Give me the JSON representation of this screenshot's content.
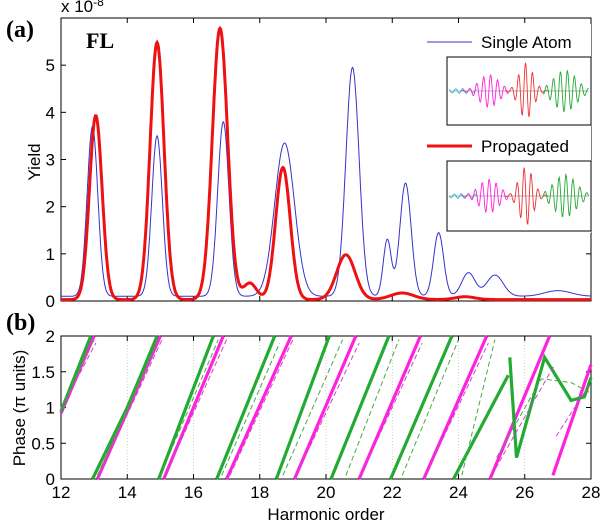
{
  "chart_data": [
    {
      "type": "line",
      "panel_label": "(a)",
      "annotation": "FL",
      "ylabel": "Yield",
      "scale_label_base": "x 10",
      "scale_label_exp": "-8",
      "xlim": [
        12,
        28
      ],
      "ylim": [
        0,
        6
      ],
      "xticks": [
        12,
        14,
        16,
        18,
        20,
        22,
        24,
        26,
        28
      ],
      "yticks": [
        "0",
        "1",
        "2",
        "3",
        "4",
        "5"
      ],
      "ytick_values": [
        0,
        1,
        2,
        3,
        4,
        5
      ],
      "series": [
        {
          "name": "Single Atom",
          "color": "#3333cc",
          "peaks": [
            {
              "x": 12.95,
              "y": 3.6,
              "w": 0.16
            },
            {
              "x": 14.9,
              "y": 3.4,
              "w": 0.16
            },
            {
              "x": 16.9,
              "y": 3.7,
              "w": 0.17
            },
            {
              "x": 18.75,
              "y": 3.25,
              "w": 0.3
            },
            {
              "x": 20.8,
              "y": 4.85,
              "w": 0.2
            },
            {
              "x": 21.85,
              "y": 1.2,
              "w": 0.12
            },
            {
              "x": 22.4,
              "y": 2.4,
              "w": 0.17
            },
            {
              "x": 23.4,
              "y": 1.35,
              "w": 0.15
            },
            {
              "x": 24.3,
              "y": 0.5,
              "w": 0.2
            },
            {
              "x": 25.1,
              "y": 0.45,
              "w": 0.25
            },
            {
              "x": 27.0,
              "y": 0.12,
              "w": 0.4
            }
          ],
          "baseline": 0.1
        },
        {
          "name": "Propagated",
          "color": "#ee1111",
          "peaks": [
            {
              "x": 13.05,
              "y": 3.9,
              "w": 0.19
            },
            {
              "x": 14.9,
              "y": 5.45,
              "w": 0.21
            },
            {
              "x": 16.8,
              "y": 5.75,
              "w": 0.23
            },
            {
              "x": 17.7,
              "y": 0.35,
              "w": 0.2
            },
            {
              "x": 18.7,
              "y": 2.8,
              "w": 0.22
            },
            {
              "x": 20.6,
              "y": 0.95,
              "w": 0.28
            },
            {
              "x": 22.3,
              "y": 0.14,
              "w": 0.35
            },
            {
              "x": 24.2,
              "y": 0.06,
              "w": 0.3
            }
          ],
          "baseline": 0.03
        }
      ],
      "legend_placement": "top-right"
    },
    {
      "type": "line",
      "panel_label": "(b)",
      "xlabel": "Harmonic order",
      "ylabel": "Phase (π units)",
      "xlim": [
        12,
        28
      ],
      "ylim": [
        0,
        2
      ],
      "xticks": [
        12,
        14,
        16,
        18,
        20,
        22,
        24,
        26,
        28
      ],
      "yticks": [
        "0",
        "0.5",
        "1",
        "1.5",
        "2"
      ],
      "ytick_values": [
        0,
        0.5,
        1,
        1.5,
        2
      ],
      "series": [
        {
          "color": "#ff22dd",
          "style": "solid",
          "segments": [
            [
              [
                12,
                0.92
              ],
              [
                13.0,
                2.0
              ]
            ],
            [
              [
                13.1,
                0
              ],
              [
                15.0,
                2.0
              ]
            ],
            [
              [
                15.1,
                0
              ],
              [
                16.9,
                2.0
              ]
            ],
            [
              [
                17.0,
                0
              ],
              [
                18.95,
                2.0
              ]
            ],
            [
              [
                19.05,
                0
              ],
              [
                20.9,
                2.0
              ]
            ],
            [
              [
                21.0,
                0
              ],
              [
                22.85,
                2.0
              ]
            ],
            [
              [
                22.95,
                0
              ],
              [
                24.85,
                2.0
              ]
            ],
            [
              [
                24.95,
                0
              ],
              [
                26.75,
                2.0
              ]
            ],
            [
              [
                26.85,
                0.05
              ],
              [
                28,
                1.6
              ]
            ]
          ]
        },
        {
          "color": "#22aa33",
          "style": "solid",
          "segments": [
            [
              [
                12,
                0.95
              ],
              [
                12.9,
                2.0
              ]
            ],
            [
              [
                12.95,
                0
              ],
              [
                14.0,
                1.0
              ],
              [
                14.9,
                2.0
              ]
            ],
            [
              [
                14.95,
                0
              ],
              [
                16.6,
                2.0
              ]
            ],
            [
              [
                16.7,
                0
              ],
              [
                18.45,
                2.0
              ]
            ],
            [
              [
                18.5,
                0
              ],
              [
                20.1,
                2.0
              ]
            ],
            [
              [
                20.15,
                0
              ],
              [
                21.9,
                2.0
              ]
            ],
            [
              [
                21.95,
                0
              ],
              [
                23.8,
                2.0
              ]
            ],
            [
              [
                23.85,
                0
              ],
              [
                25.5,
                1.45
              ]
            ],
            [
              [
                25.55,
                1.7
              ],
              [
                25.75,
                0.3
              ],
              [
                26.6,
                1.7
              ],
              [
                27.4,
                1.1
              ],
              [
                27.8,
                1.15
              ],
              [
                28,
                1.42
              ]
            ]
          ]
        },
        {
          "color": "#cc44cc",
          "style": "dashed",
          "segments": [
            [
              [
                12,
                0.98
              ],
              [
                13.05,
                1.9
              ]
            ],
            [
              [
                13.15,
                0.05
              ],
              [
                15.05,
                1.95
              ]
            ],
            [
              [
                15.15,
                0.05
              ],
              [
                17.0,
                1.95
              ]
            ],
            [
              [
                17.1,
                0.05
              ],
              [
                19.0,
                1.95
              ]
            ],
            [
              [
                19.1,
                0.05
              ],
              [
                21.0,
                1.9
              ]
            ],
            [
              [
                21.05,
                0.05
              ],
              [
                22.9,
                1.9
              ]
            ],
            [
              [
                23.0,
                0.05
              ],
              [
                24.9,
                1.9
              ]
            ],
            [
              [
                25.0,
                0.05
              ],
              [
                26.9,
                1.6
              ]
            ],
            [
              [
                26.95,
                0.6
              ],
              [
                28,
                1.35
              ]
            ]
          ]
        },
        {
          "color": "#44aa44",
          "style": "dashed",
          "segments": [
            [
              [
                12,
                1.0
              ],
              [
                13.0,
                1.95
              ]
            ],
            [
              [
                13.1,
                0.05
              ],
              [
                14.9,
                1.9
              ]
            ],
            [
              [
                15.0,
                0.05
              ],
              [
                16.75,
                1.95
              ]
            ],
            [
              [
                16.85,
                0.05
              ],
              [
                18.6,
                1.9
              ]
            ],
            [
              [
                18.7,
                0.05
              ],
              [
                20.5,
                1.95
              ]
            ],
            [
              [
                20.6,
                0.05
              ],
              [
                22.2,
                1.95
              ]
            ],
            [
              [
                22.3,
                0.05
              ],
              [
                24.0,
                1.95
              ]
            ],
            [
              [
                24.1,
                0.05
              ],
              [
                25.1,
                1.95
              ]
            ],
            [
              [
                25.15,
                0.3
              ],
              [
                26.5,
                1.4
              ],
              [
                27.4,
                1.35
              ],
              [
                28,
                1.2
              ]
            ]
          ]
        }
      ]
    }
  ]
}
